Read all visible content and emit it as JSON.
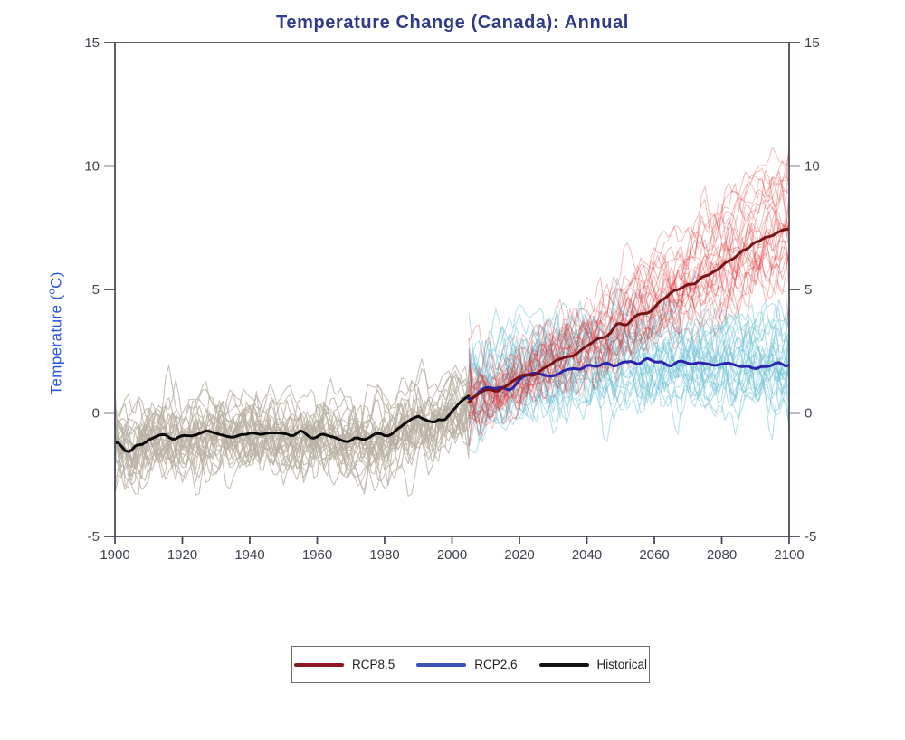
{
  "chart_data": {
    "type": "line",
    "title": "Temperature Change (Canada): Annual",
    "xlabel": "",
    "ylabel_prefix": "Temperature (",
    "ylabel_degree": "o",
    "ylabel_suffix": "C)",
    "ylabel_plain": "Temperature (°C)",
    "xlim": [
      1900,
      2100
    ],
    "ylim": [
      -5,
      15
    ],
    "x_ticks": [
      1900,
      1920,
      1940,
      1960,
      1980,
      2000,
      2020,
      2040,
      2060,
      2080,
      2100
    ],
    "y_ticks": [
      15,
      10,
      5,
      0,
      -5
    ],
    "grid": false,
    "frame": true,
    "axis_color": "#3e4252",
    "tick_label_color": "#3e4252",
    "series": [
      {
        "name": "Historical",
        "role": "ensemble-mean",
        "color": "#0b0b0b",
        "width": 3,
        "start_year": 1900,
        "end_year": 2005,
        "step": 5,
        "values": [
          -1.1,
          -1.45,
          -1.05,
          -0.9,
          -1.0,
          -0.85,
          -0.8,
          -0.9,
          -0.75,
          -0.85,
          -0.9,
          -0.8,
          -0.9,
          -0.95,
          -1.1,
          -0.9,
          -1.0,
          -0.7,
          -0.15,
          -0.4,
          0.1,
          0.55
        ]
      },
      {
        "name": "RCP2.6",
        "role": "ensemble-mean",
        "color": "#2b23ae",
        "width": 3,
        "start_year": 2005,
        "end_year": 2100,
        "step": 5,
        "values": [
          0.55,
          0.9,
          1.1,
          1.3,
          1.5,
          1.6,
          1.75,
          1.85,
          1.95,
          2.0,
          2.05,
          2.1,
          2.0,
          2.0,
          1.95,
          2.0,
          1.9,
          1.95,
          1.9,
          1.85
        ]
      },
      {
        "name": "RCP8.5",
        "role": "ensemble-mean",
        "color": "#791315",
        "width": 3,
        "start_year": 2005,
        "end_year": 2100,
        "step": 5,
        "values": [
          0.55,
          0.85,
          1.1,
          1.35,
          1.7,
          2.0,
          2.35,
          2.7,
          3.1,
          3.5,
          3.9,
          4.3,
          4.75,
          5.2,
          5.6,
          6.0,
          6.4,
          6.9,
          7.2,
          7.5
        ]
      }
    ],
    "ensembles": [
      {
        "of": "Historical",
        "members": 30,
        "color": "#b9b2a4",
        "opacity": 0.8,
        "width": 1.1,
        "offset_sd": 0.5,
        "scale_sd": 0.05,
        "noise_sd": 0.9,
        "seed": 42
      },
      {
        "of": "RCP2.6",
        "members": 28,
        "color": "#72c3d8",
        "opacity": 0.5,
        "width": 1.1,
        "offset_sd": 0.7,
        "scale_sd": 0.3,
        "noise_sd": 1.0,
        "seed": 7
      },
      {
        "of": "RCP8.5",
        "members": 28,
        "color": "#e23030",
        "opacity": 0.3,
        "width": 1.1,
        "offset_sd": 0.55,
        "scale_sd": 0.22,
        "noise_sd": 0.95,
        "seed": 13
      }
    ],
    "legend": {
      "position": "bottom-center",
      "entries": [
        {
          "label": "RCP8.5",
          "color": "#8a181c"
        },
        {
          "label": "RCP2.6",
          "color": "#3a52b5"
        },
        {
          "label": "Historical",
          "color": "#141414"
        }
      ]
    }
  }
}
